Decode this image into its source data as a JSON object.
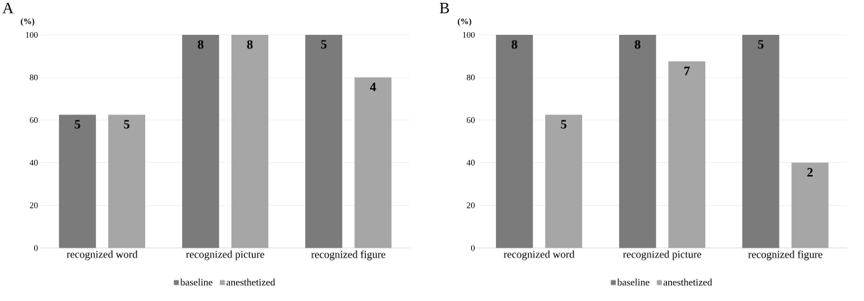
{
  "chart_data": [
    {
      "type": "bar",
      "title": "A",
      "ylabel": "(%)",
      "categories": [
        "recognized word",
        "recognized picture",
        "recognized figure"
      ],
      "series": [
        {
          "name": "baseline",
          "color": "#7b7b7b",
          "values": [
            62.5,
            100,
            100
          ]
        },
        {
          "name": "anesthetized",
          "color": "#a6a6a6",
          "values": [
            62.5,
            100,
            80
          ]
        }
      ],
      "annotations": [
        "5",
        "5",
        "8",
        "8",
        "5",
        "4"
      ],
      "ylim": [
        0,
        100
      ],
      "yticks": [
        0,
        20,
        40,
        60,
        80,
        100
      ],
      "grid": "y",
      "legend": "bottom"
    },
    {
      "type": "bar",
      "title": "B",
      "ylabel": "(%)",
      "categories": [
        "recognized word",
        "recognized picture",
        "recognized figure"
      ],
      "series": [
        {
          "name": "baseline",
          "color": "#7b7b7b",
          "values": [
            100,
            100,
            100
          ]
        },
        {
          "name": "anesthetized",
          "color": "#a6a6a6",
          "values": [
            62.5,
            87.5,
            40
          ]
        }
      ],
      "annotations": [
        "8",
        "5",
        "8",
        "7",
        "5",
        "2"
      ],
      "ylim": [
        0,
        100
      ],
      "yticks": [
        0,
        20,
        40,
        60,
        80,
        100
      ],
      "grid": "y",
      "legend": "bottom"
    }
  ]
}
